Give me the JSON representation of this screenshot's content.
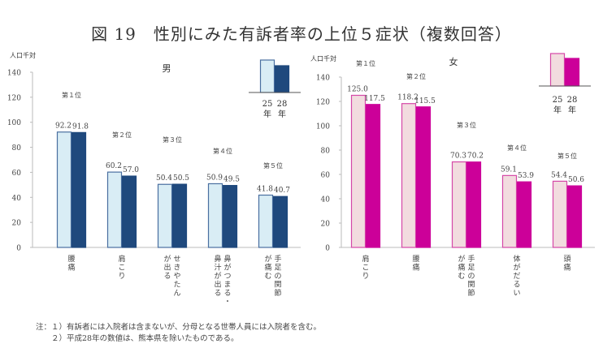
{
  "title": "図 19　性別にみた有訴者率の上位５症状（複数回答）",
  "notes": [
    "注：１）有訴者には入院者は含まないが、分母となる世帯人員には入院者を含む。",
    "　　２）平成28年の数値は、熊本県を除いたものである。"
  ],
  "chart_data": [
    {
      "type": "bar",
      "panel_title": "男",
      "ylabel": "人口千対",
      "ylim": [
        0,
        140
      ],
      "yticks": [
        0,
        20,
        40,
        60,
        80,
        100,
        120,
        140
      ],
      "grid": false,
      "legend_position": "top-right",
      "categories": [
        "腰痛",
        "肩こり",
        "せきやたんが出る",
        "鼻がつまる・鼻汁が出る",
        "手足の関節が痛む"
      ],
      "category_label_columns": [
        [
          "腰痛"
        ],
        [
          "肩こり"
        ],
        [
          "せきやたん",
          "が出る"
        ],
        [
          "鼻がつまる・",
          "鼻汁が出る"
        ],
        [
          "手足の関節",
          "が痛む"
        ]
      ],
      "ranks": [
        "第１位",
        "第２位",
        "第３位",
        "第４位",
        "第５位"
      ],
      "series": [
        {
          "name": "25年",
          "legend_lines": [
            "25",
            "年"
          ],
          "color": "#d9edf5",
          "stroke": "#4a6fa0",
          "values": [
            92.2,
            60.2,
            50.4,
            50.9,
            41.8
          ],
          "labels": [
            "92.2",
            "60.2",
            "50.4",
            "50.9",
            "41.8"
          ]
        },
        {
          "name": "28年",
          "legend_lines": [
            "28",
            "年"
          ],
          "color": "#1f497d",
          "stroke": "#1f497d",
          "values": [
            91.8,
            57.0,
            50.5,
            49.5,
            40.7
          ],
          "labels": [
            "91.8",
            "57.0",
            "50.5",
            "49.5",
            "40.7"
          ]
        }
      ]
    },
    {
      "type": "bar",
      "panel_title": "女",
      "ylabel": "人口千対",
      "ylim": [
        0,
        140
      ],
      "yticks": [
        0,
        20,
        40,
        60,
        80,
        100,
        120,
        140
      ],
      "grid": false,
      "legend_position": "top-right",
      "categories": [
        "肩こり",
        "腰痛",
        "手足の関節が痛む",
        "体がだるい",
        "頭痛"
      ],
      "category_label_columns": [
        [
          "肩こり"
        ],
        [
          "腰痛"
        ],
        [
          "手足の関節",
          "が痛む"
        ],
        [
          "体がだるい"
        ],
        [
          "頭痛"
        ]
      ],
      "ranks": [
        "第１位",
        "第２位",
        "第３位",
        "第４位",
        "第５位"
      ],
      "series": [
        {
          "name": "25年",
          "legend_lines": [
            "25",
            "年"
          ],
          "color": "#f2dcdf",
          "stroke": "#d548a8",
          "values": [
            125.0,
            118.2,
            70.3,
            59.1,
            54.4
          ],
          "labels": [
            "125.0",
            "118.2",
            "70.3",
            "59.1",
            "54.4"
          ]
        },
        {
          "name": "28年",
          "legend_lines": [
            "28",
            "年"
          ],
          "color": "#cc0099",
          "stroke": "#cc0099",
          "values": [
            117.5,
            115.5,
            70.2,
            53.9,
            50.6
          ],
          "labels": [
            "117.5",
            "115.5",
            "70.2",
            "53.9",
            "50.6"
          ]
        }
      ]
    }
  ]
}
